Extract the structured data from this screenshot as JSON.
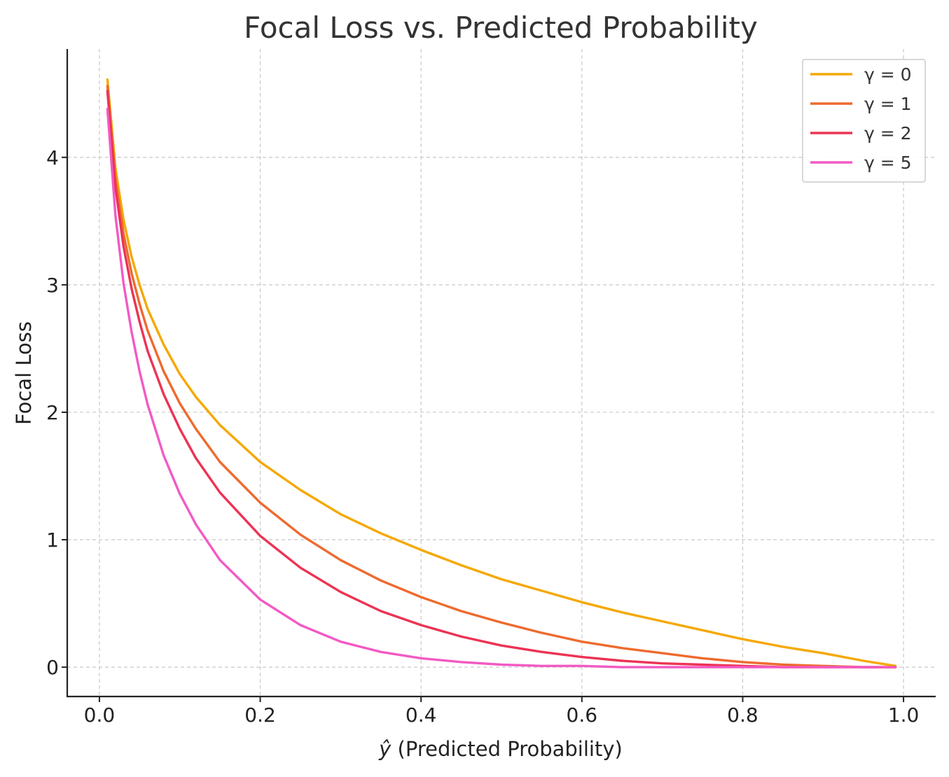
{
  "chart_data": {
    "type": "line",
    "title": "Focal Loss vs. Predicted Probability",
    "xlabel_math": "ŷ",
    "xlabel_rest": " (Predicted Probability)",
    "ylabel": "Focal Loss",
    "xlim": [
      -0.04,
      1.04
    ],
    "ylim": [
      -0.23,
      4.85
    ],
    "x_ticks": [
      0.0,
      0.2,
      0.4,
      0.6,
      0.8,
      1.0
    ],
    "x_tick_labels": [
      "0.0",
      "0.2",
      "0.4",
      "0.6",
      "0.8",
      "1.0"
    ],
    "y_ticks": [
      0,
      1,
      2,
      3,
      4
    ],
    "y_tick_labels": [
      "0",
      "1",
      "2",
      "3",
      "4"
    ],
    "grid": true,
    "legend_position": "top-right",
    "x": [
      0.01,
      0.02,
      0.03,
      0.04,
      0.05,
      0.06,
      0.08,
      0.1,
      0.12,
      0.15,
      0.2,
      0.25,
      0.3,
      0.35,
      0.4,
      0.45,
      0.5,
      0.55,
      0.6,
      0.65,
      0.7,
      0.75,
      0.8,
      0.85,
      0.9,
      0.95,
      0.99
    ],
    "series": [
      {
        "name": "γ = 0",
        "color": "#f5a800",
        "values": [
          4.61,
          3.91,
          3.51,
          3.22,
          3.0,
          2.81,
          2.53,
          2.3,
          2.12,
          1.9,
          1.61,
          1.39,
          1.2,
          1.05,
          0.92,
          0.8,
          0.69,
          0.6,
          0.51,
          0.43,
          0.36,
          0.29,
          0.22,
          0.16,
          0.11,
          0.05,
          0.01
        ]
      },
      {
        "name": "γ = 1",
        "color": "#ee6a2e",
        "values": [
          4.56,
          3.83,
          3.4,
          3.09,
          2.85,
          2.64,
          2.32,
          2.07,
          1.87,
          1.61,
          1.29,
          1.04,
          0.84,
          0.68,
          0.55,
          0.44,
          0.35,
          0.27,
          0.2,
          0.15,
          0.11,
          0.07,
          0.04,
          0.02,
          0.01,
          0.0,
          0.0
        ]
      },
      {
        "name": "γ = 2",
        "color": "#ec3354",
        "values": [
          4.52,
          3.76,
          3.3,
          2.97,
          2.71,
          2.48,
          2.14,
          1.87,
          1.64,
          1.37,
          1.03,
          0.78,
          0.59,
          0.44,
          0.33,
          0.24,
          0.17,
          0.12,
          0.08,
          0.05,
          0.03,
          0.02,
          0.01,
          0.0,
          0.0,
          0.0,
          0.0
        ]
      },
      {
        "name": "γ = 5",
        "color": "#f25ac4",
        "values": [
          4.38,
          3.54,
          3.01,
          2.63,
          2.32,
          2.06,
          1.66,
          1.36,
          1.12,
          0.84,
          0.53,
          0.33,
          0.2,
          0.12,
          0.07,
          0.04,
          0.02,
          0.01,
          0.01,
          0.0,
          0.0,
          0.0,
          0.0,
          0.0,
          0.0,
          0.0,
          0.0
        ]
      }
    ]
  }
}
